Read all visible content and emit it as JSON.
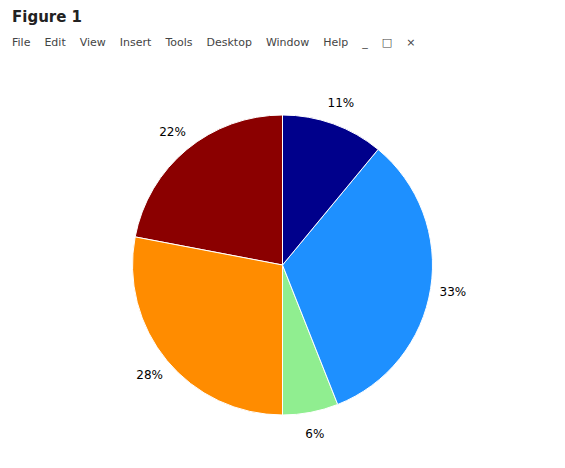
{
  "chart_data": {
    "type": "pie",
    "title": "Figure 1",
    "annotations": [
      "File",
      "Edit",
      "View",
      "Insert",
      "Tools",
      "Desktop",
      "Window",
      "Help",
      "_",
      "□",
      "×"
    ],
    "categories": [
      null,
      null,
      null,
      null,
      null
    ],
    "values": [
      22,
      28,
      6,
      33,
      11
    ],
    "value_labels": [
      "22%",
      "28%",
      "6%",
      "33%",
      "11%"
    ],
    "colors": [
      "#8B0000",
      "#FF8C00",
      "#90EE90",
      "#1E90FF",
      "#00008B"
    ],
    "data_labels": true
  }
}
